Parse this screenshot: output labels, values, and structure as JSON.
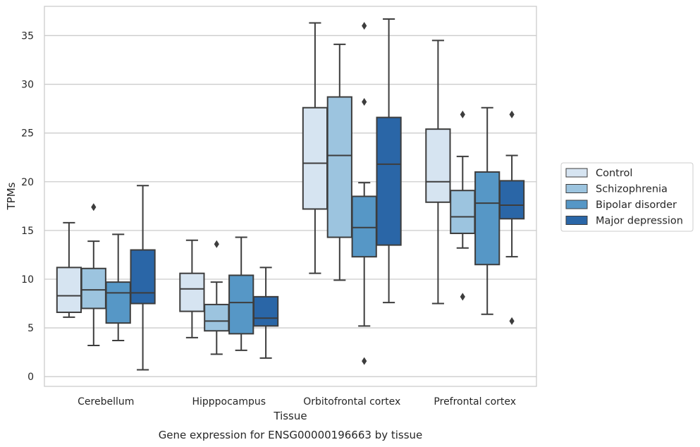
{
  "chart_data": {
    "type": "box",
    "title": "",
    "caption": "Gene expression for ENSG00000196663 by tissue",
    "xlabel": "Tissue",
    "ylabel": "TPMs",
    "ylim": [
      -1,
      38
    ],
    "yticks": [
      0,
      5,
      10,
      15,
      20,
      25,
      30,
      35
    ],
    "grid": "horizontal",
    "legend_placement": "right",
    "categories": [
      "Cerebellum",
      "Hipppocampus",
      "Orbitofrontal cortex",
      "Prefrontal cortex"
    ],
    "series": [
      {
        "name": "Control",
        "color": "#d6e4f1",
        "boxes": [
          {
            "whislo": 6.1,
            "q1": 6.6,
            "med": 8.3,
            "q3": 11.2,
            "whishi": 15.8,
            "fliers": []
          },
          {
            "whislo": 4.0,
            "q1": 6.7,
            "med": 9.0,
            "q3": 10.6,
            "whishi": 14.0,
            "fliers": []
          },
          {
            "whislo": 10.6,
            "q1": 17.2,
            "med": 21.9,
            "q3": 27.6,
            "whishi": 36.3,
            "fliers": []
          },
          {
            "whislo": 7.5,
            "q1": 17.9,
            "med": 20.0,
            "q3": 25.4,
            "whishi": 34.5,
            "fliers": []
          }
        ]
      },
      {
        "name": "Schizophrenia",
        "color": "#9cc4df",
        "boxes": [
          {
            "whislo": 3.2,
            "q1": 7.0,
            "med": 8.9,
            "q3": 11.1,
            "whishi": 13.9,
            "fliers": [
              17.4
            ]
          },
          {
            "whislo": 2.3,
            "q1": 4.7,
            "med": 5.7,
            "q3": 7.4,
            "whishi": 9.7,
            "fliers": [
              13.6
            ]
          },
          {
            "whislo": 9.9,
            "q1": 14.3,
            "med": 22.7,
            "q3": 28.7,
            "whishi": 34.1,
            "fliers": []
          },
          {
            "whislo": 13.2,
            "q1": 14.7,
            "med": 16.4,
            "q3": 19.1,
            "whishi": 22.6,
            "fliers": [
              8.2,
              26.9
            ]
          }
        ]
      },
      {
        "name": "Bipolar disorder",
        "color": "#5697c6",
        "boxes": [
          {
            "whislo": 3.7,
            "q1": 5.5,
            "med": 8.6,
            "q3": 9.7,
            "whishi": 14.6,
            "fliers": []
          },
          {
            "whislo": 2.7,
            "q1": 4.4,
            "med": 7.6,
            "q3": 10.4,
            "whishi": 14.3,
            "fliers": []
          },
          {
            "whislo": 5.2,
            "q1": 12.3,
            "med": 15.3,
            "q3": 18.5,
            "whishi": 19.9,
            "fliers": [
              1.6,
              28.2,
              36.0
            ]
          },
          {
            "whislo": 6.4,
            "q1": 11.5,
            "med": 17.8,
            "q3": 21.0,
            "whishi": 27.6,
            "fliers": []
          }
        ]
      },
      {
        "name": "Major depression",
        "color": "#2a66a7",
        "boxes": [
          {
            "whislo": 0.7,
            "q1": 7.5,
            "med": 8.6,
            "q3": 13.0,
            "whishi": 19.6,
            "fliers": []
          },
          {
            "whislo": 1.9,
            "q1": 5.2,
            "med": 6.0,
            "q3": 8.2,
            "whishi": 11.2,
            "fliers": []
          },
          {
            "whislo": 7.6,
            "q1": 13.5,
            "med": 21.8,
            "q3": 26.6,
            "whishi": 36.7,
            "fliers": []
          },
          {
            "whislo": 12.3,
            "q1": 16.2,
            "med": 17.6,
            "q3": 20.1,
            "whishi": 22.7,
            "fliers": [
              5.7,
              26.9
            ]
          }
        ]
      }
    ]
  },
  "colors": {
    "grid": "#cccccc",
    "frame": "#cccccc",
    "box_edge": "#3d3d3d",
    "background": "#ffffff"
  }
}
